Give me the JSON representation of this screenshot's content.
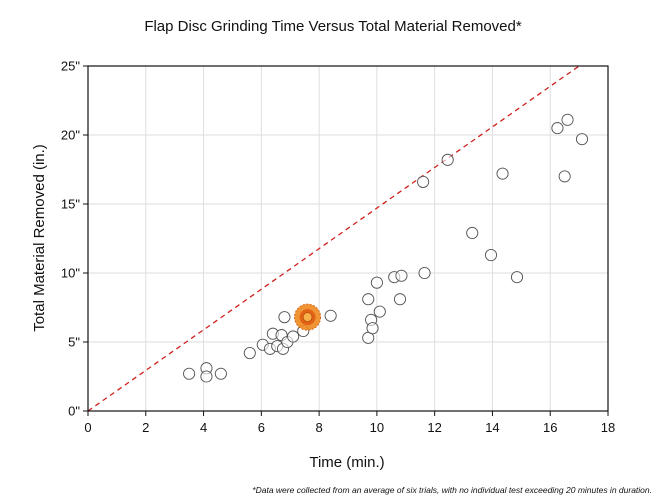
{
  "chart_data": {
    "type": "scatter",
    "title": "Flap Disc Grinding Time Versus Total Material Removed*",
    "xlabel": "Time (min.)",
    "ylabel": "Total Material Removed (in.)",
    "xlim": [
      0,
      18
    ],
    "ylim": [
      0,
      25
    ],
    "x_ticks": [
      0,
      2,
      4,
      6,
      8,
      10,
      12,
      14,
      16,
      18
    ],
    "x_tick_labels": [
      "0",
      "2",
      "4",
      "6",
      "8",
      "10",
      "12",
      "14",
      "16",
      "18"
    ],
    "y_ticks": [
      0,
      5,
      10,
      15,
      20,
      25
    ],
    "y_tick_labels": [
      "0\"",
      "5\"",
      "10\"",
      "15\"",
      "20\"",
      "25\""
    ],
    "grid": true,
    "reference_line": {
      "style": "dashed",
      "color": "#d0201c",
      "from": [
        0,
        0
      ],
      "to": [
        17,
        25
      ]
    },
    "points": [
      {
        "x": 3.5,
        "y": 2.7
      },
      {
        "x": 4.1,
        "y": 3.1
      },
      {
        "x": 4.1,
        "y": 2.5
      },
      {
        "x": 4.6,
        "y": 2.7
      },
      {
        "x": 5.6,
        "y": 4.2
      },
      {
        "x": 6.05,
        "y": 4.8
      },
      {
        "x": 6.3,
        "y": 4.5
      },
      {
        "x": 6.4,
        "y": 5.6
      },
      {
        "x": 6.55,
        "y": 4.7
      },
      {
        "x": 6.7,
        "y": 5.5
      },
      {
        "x": 6.75,
        "y": 4.5
      },
      {
        "x": 6.8,
        "y": 6.8
      },
      {
        "x": 6.9,
        "y": 5.0
      },
      {
        "x": 7.1,
        "y": 5.4
      },
      {
        "x": 7.45,
        "y": 5.8
      },
      {
        "x": 8.4,
        "y": 6.9
      },
      {
        "x": 9.7,
        "y": 5.3
      },
      {
        "x": 9.7,
        "y": 8.1
      },
      {
        "x": 9.8,
        "y": 6.6
      },
      {
        "x": 9.85,
        "y": 6.0
      },
      {
        "x": 10.0,
        "y": 9.3
      },
      {
        "x": 10.1,
        "y": 7.2
      },
      {
        "x": 10.6,
        "y": 9.7
      },
      {
        "x": 10.8,
        "y": 8.1
      },
      {
        "x": 10.85,
        "y": 9.8
      },
      {
        "x": 11.6,
        "y": 16.6
      },
      {
        "x": 11.65,
        "y": 10.0
      },
      {
        "x": 12.45,
        "y": 18.2
      },
      {
        "x": 13.3,
        "y": 12.9
      },
      {
        "x": 13.95,
        "y": 11.3
      },
      {
        "x": 14.35,
        "y": 17.2
      },
      {
        "x": 14.85,
        "y": 9.7
      },
      {
        "x": 16.25,
        "y": 20.5
      },
      {
        "x": 16.5,
        "y": 17.0
      },
      {
        "x": 16.6,
        "y": 21.1
      },
      {
        "x": 17.1,
        "y": 19.7
      }
    ],
    "highlight_point": {
      "x": 7.6,
      "y": 6.8,
      "color": "#f08a1e",
      "core_color": "#e05a12"
    }
  },
  "footnote": "*Data were collected from an average of six trials, with no individual test exceeding 20 minutes in duration."
}
